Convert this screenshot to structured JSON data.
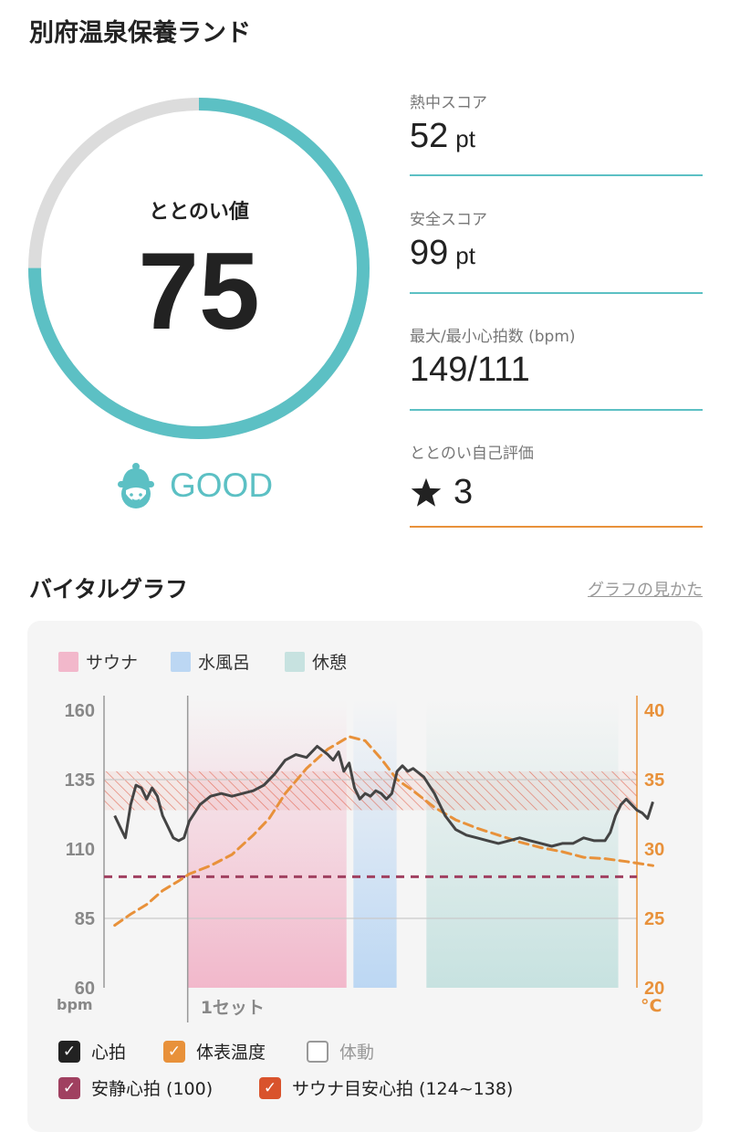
{
  "header": {
    "title": "別府温泉保養ランド"
  },
  "score": {
    "label": "ととのい値",
    "value": 75,
    "rating": "GOOD",
    "ring_color": "#5cc0c4",
    "track_color": "#dcdcdc"
  },
  "metrics": [
    {
      "label": "熱中スコア",
      "value": "52",
      "unit": "pt"
    },
    {
      "label": "安全スコア",
      "value": "99",
      "unit": "pt"
    },
    {
      "label": "最大/最小心拍数 (bpm)",
      "value": "149/111",
      "unit": ""
    },
    {
      "label": "ととのい自己評価",
      "value": "3",
      "unit": ""
    }
  ],
  "vital": {
    "title": "バイタルグラフ",
    "guide_link": "グラフの見かた"
  },
  "chart_data": {
    "type": "line",
    "legend_phases": [
      {
        "name": "サウナ",
        "color": "#f2b8cb"
      },
      {
        "name": "水風呂",
        "color": "#bcd7f3"
      },
      {
        "name": "休憩",
        "color": "#c7e2e0"
      }
    ],
    "left_axis": {
      "unit": "bpm",
      "ticks": [
        160,
        135,
        110,
        85,
        60
      ],
      "range": [
        60,
        160
      ]
    },
    "right_axis": {
      "unit": "°C",
      "ticks": [
        40,
        35,
        30,
        25,
        20
      ],
      "range": [
        20,
        40
      ]
    },
    "x_range": [
      0,
      100
    ],
    "set_label": "1セット",
    "phases": [
      {
        "type": "sauna",
        "start": 15.7,
        "end": 45.5
      },
      {
        "type": "water",
        "start": 46.8,
        "end": 54.9
      },
      {
        "type": "rest",
        "start": 60.5,
        "end": 96.5
      }
    ],
    "heart_rate": {
      "name": "心拍",
      "points": [
        [
          2,
          122
        ],
        [
          3,
          118
        ],
        [
          4,
          114
        ],
        [
          5,
          126
        ],
        [
          6,
          133
        ],
        [
          7,
          132
        ],
        [
          8,
          128
        ],
        [
          9,
          132
        ],
        [
          10,
          129
        ],
        [
          11,
          122
        ],
        [
          12,
          118
        ],
        [
          13,
          114
        ],
        [
          14,
          113
        ],
        [
          15,
          114
        ],
        [
          16,
          120
        ],
        [
          18,
          126
        ],
        [
          20,
          129
        ],
        [
          22,
          130
        ],
        [
          24,
          129
        ],
        [
          26,
          130
        ],
        [
          28,
          131
        ],
        [
          30,
          133
        ],
        [
          32,
          137
        ],
        [
          34,
          142
        ],
        [
          36,
          144
        ],
        [
          38,
          143
        ],
        [
          40,
          147
        ],
        [
          42,
          144
        ],
        [
          43,
          142
        ],
        [
          44,
          145
        ],
        [
          45,
          138
        ],
        [
          46,
          141
        ],
        [
          47,
          132
        ],
        [
          48,
          128
        ],
        [
          49,
          130
        ],
        [
          50,
          129
        ],
        [
          51,
          131
        ],
        [
          52,
          130
        ],
        [
          53,
          128
        ],
        [
          54,
          130
        ],
        [
          55,
          138
        ],
        [
          56,
          140
        ],
        [
          57,
          138
        ],
        [
          58,
          139
        ],
        [
          60,
          136
        ],
        [
          62,
          130
        ],
        [
          64,
          122
        ],
        [
          66,
          117
        ],
        [
          68,
          115
        ],
        [
          70,
          114
        ],
        [
          72,
          113
        ],
        [
          74,
          112
        ],
        [
          76,
          113
        ],
        [
          78,
          114
        ],
        [
          80,
          113
        ],
        [
          82,
          112
        ],
        [
          84,
          111
        ],
        [
          86,
          112
        ],
        [
          88,
          112
        ],
        [
          90,
          114
        ],
        [
          92,
          113
        ],
        [
          94,
          113
        ],
        [
          95,
          116
        ],
        [
          96,
          122
        ],
        [
          97,
          126
        ],
        [
          98,
          128
        ],
        [
          99,
          126
        ],
        [
          100,
          124
        ],
        [
          101,
          123
        ],
        [
          102,
          121
        ],
        [
          103,
          127
        ]
      ]
    },
    "body_temp": {
      "name": "体表温度",
      "points": [
        [
          2,
          24.5
        ],
        [
          5,
          25.3
        ],
        [
          8,
          26.0
        ],
        [
          11,
          27.0
        ],
        [
          14,
          27.7
        ],
        [
          16,
          28.2
        ],
        [
          20,
          28.8
        ],
        [
          24,
          29.6
        ],
        [
          28,
          31.0
        ],
        [
          31,
          32.2
        ],
        [
          34,
          34.0
        ],
        [
          38,
          35.8
        ],
        [
          42,
          37.2
        ],
        [
          46,
          38.1
        ],
        [
          49,
          37.8
        ],
        [
          52,
          36.5
        ],
        [
          55,
          35.0
        ],
        [
          58,
          34.2
        ],
        [
          62,
          33.0
        ],
        [
          66,
          32.1
        ],
        [
          70,
          31.5
        ],
        [
          74,
          31.0
        ],
        [
          78,
          30.5
        ],
        [
          82,
          30.1
        ],
        [
          86,
          29.8
        ],
        [
          90,
          29.4
        ],
        [
          94,
          29.3
        ],
        [
          98,
          29.1
        ],
        [
          103,
          28.8
        ]
      ]
    },
    "resting_hr": {
      "name": "安静心拍",
      "value": 100
    },
    "sauna_target_hr": {
      "name": "サウナ目安心拍",
      "range": [
        124,
        138
      ]
    },
    "body_motion": {
      "name": "体動"
    },
    "colors": {
      "heart_rate": "#444444",
      "body_temp": "#e8913a",
      "resting_hr": "#a04060",
      "target_band": "#e0533a"
    }
  },
  "toggles": [
    {
      "label": "心拍",
      "checked": true,
      "color": "#222222"
    },
    {
      "label": "体表温度",
      "checked": true,
      "color": "#e8913a"
    },
    {
      "label": "体動",
      "checked": false,
      "color": "#999999"
    },
    {
      "label": "安静心拍 (100)",
      "checked": true,
      "color": "#a04060"
    },
    {
      "label": "サウナ目安心拍 (124~138)",
      "checked": true,
      "color": "#d9532c"
    }
  ]
}
